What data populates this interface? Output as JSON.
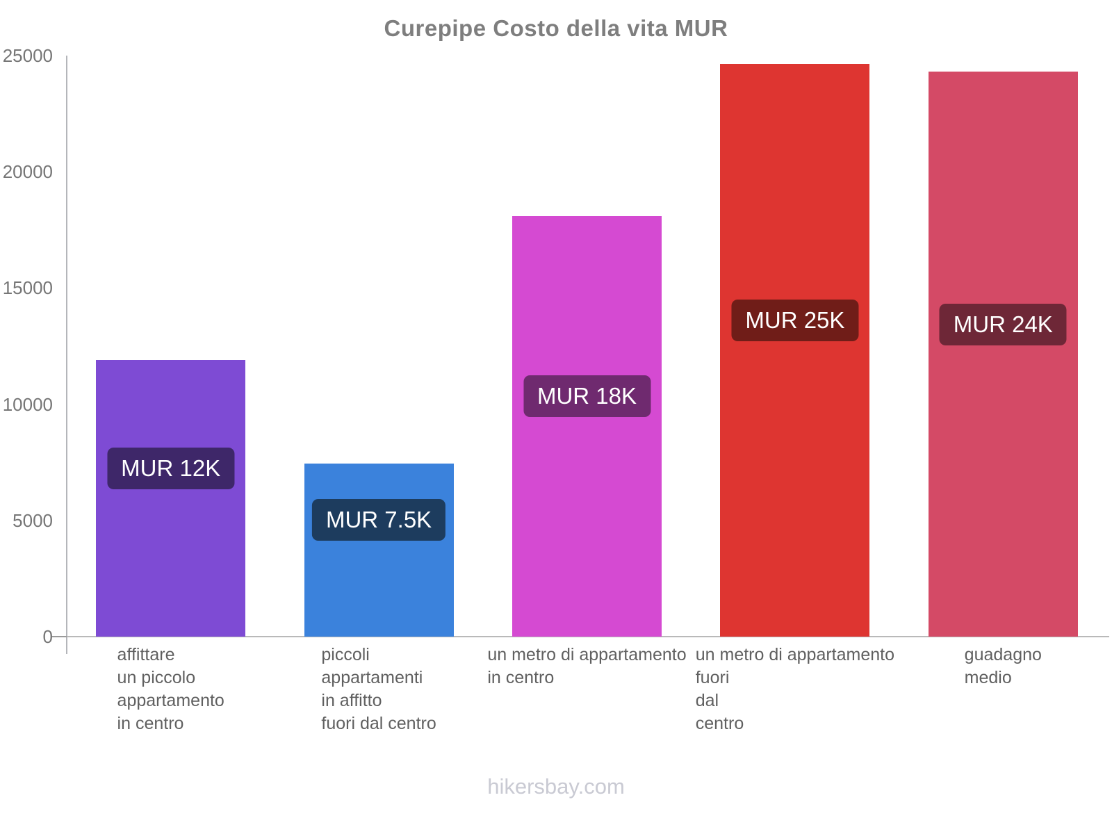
{
  "title": "Curepipe Costo della vita MUR",
  "footer": "hikersbay.com",
  "chart_data": {
    "type": "bar",
    "title": "Curepipe Costo della vita MUR",
    "currency": "MUR",
    "categories": [
      "affittare un piccolo appartamento in centro",
      "piccoli appartamenti in affitto fuori dal centro",
      "un metro di appartamento in centro",
      "un metro di appartamento fuori dal centro",
      "guadagno medio"
    ],
    "category_lines": [
      [
        "affittare",
        "un piccolo",
        "appartamento",
        "in centro"
      ],
      [
        "piccoli",
        "appartamenti",
        "in affitto",
        "fuori dal centro"
      ],
      [
        "un metro di appartamento",
        "in centro"
      ],
      [
        "un metro di appartamento",
        "fuori",
        "dal",
        "centro"
      ],
      [
        "guadagno",
        "medio"
      ]
    ],
    "values": [
      11900,
      7450,
      18100,
      24650,
      24300
    ],
    "value_labels": [
      "MUR 12K",
      "MUR 7.5K",
      "MUR 18K",
      "MUR 25K",
      "MUR 24K"
    ],
    "bar_colors": [
      "#7E4BD4",
      "#3B82DC",
      "#D54AD2",
      "#DE3531",
      "#D44A66"
    ],
    "value_label_bg_colors": [
      "#3E2769",
      "#1D3C5E",
      "#6F2A6F",
      "#701D18",
      "#6E2737"
    ],
    "ylim": [
      0,
      25000
    ],
    "yticks": [
      0,
      5000,
      10000,
      15000,
      20000,
      25000
    ],
    "ytick_labels": [
      "0",
      "5000",
      "10000",
      "15000",
      "20000",
      "25000"
    ],
    "xlabel": "",
    "ylabel": "",
    "grid": false,
    "legend": false,
    "colors": {
      "title_text": "#7e7e7e",
      "axis_line": "#b4b6ba",
      "tick_text": "#767676",
      "category_text": "#606060",
      "footer_text": "#c9cad3",
      "value_label_text": "#ffffff"
    }
  }
}
